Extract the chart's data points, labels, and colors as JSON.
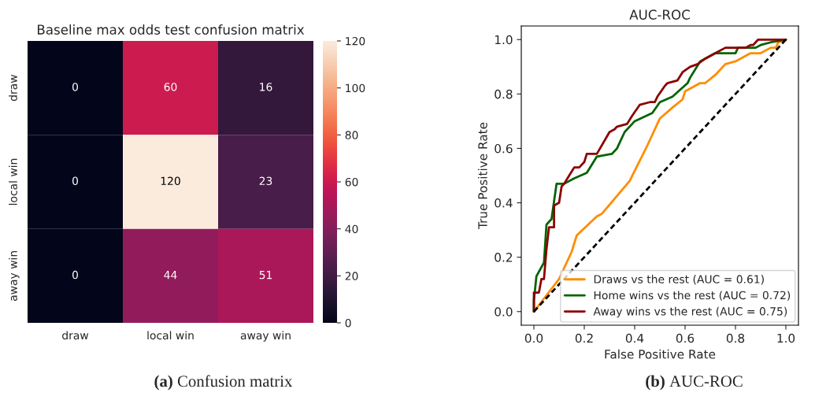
{
  "chart_data": [
    {
      "type": "heatmap",
      "title": "Baseline max odds test confusion matrix",
      "categories": [
        "draw",
        "local win",
        "away win"
      ],
      "y_categories": [
        "draw",
        "local win",
        "away win"
      ],
      "cells": [
        [
          0,
          60,
          16
        ],
        [
          0,
          120,
          23
        ],
        [
          0,
          44,
          51
        ]
      ],
      "data_labels": true,
      "clim": [
        0,
        120
      ],
      "cticks": [
        0,
        20,
        40,
        60,
        80,
        100,
        120
      ],
      "annotations": [
        "(a) Confusion matrix"
      ]
    },
    {
      "type": "line",
      "title": "AUC-ROC",
      "xlabel": "False Positive Rate",
      "ylabel": "True Positive Rate",
      "xlim": [
        -0.05,
        1.05
      ],
      "ylim": [
        -0.05,
        1.05
      ],
      "xticks": [
        {
          "value": 0,
          "label": "0.0"
        },
        {
          "value": 0.2,
          "label": "0.2"
        },
        {
          "value": 0.4,
          "label": "0.4"
        },
        {
          "value": 0.6,
          "label": "0.6"
        },
        {
          "value": 0.8,
          "label": "0.8"
        },
        {
          "value": 1,
          "label": "1.0"
        }
      ],
      "yticks": [
        {
          "value": 0,
          "label": "0.0"
        },
        {
          "value": 0.2,
          "label": "0.2"
        },
        {
          "value": 0.4,
          "label": "0.4"
        },
        {
          "value": 0.6,
          "label": "0.6"
        },
        {
          "value": 0.8,
          "label": "0.8"
        },
        {
          "value": 1,
          "label": "1.0"
        }
      ],
      "grid": false,
      "legend": "bottom right",
      "series": [
        {
          "name": "Draws vs the rest (AUC = 0.61)",
          "color": "#ff8c00",
          "x": [
            0,
            0.1,
            0.15,
            0.17,
            0.25,
            0.27,
            0.38,
            0.45,
            0.5,
            0.55,
            0.59,
            0.6,
            0.66,
            0.68,
            0.72,
            0.76,
            0.8,
            0.86,
            0.9,
            0.94,
            0.96,
            0.97,
            1
          ],
          "values": [
            0,
            0.12,
            0.22,
            0.28,
            0.35,
            0.36,
            0.48,
            0.61,
            0.71,
            0.75,
            0.78,
            0.81,
            0.84,
            0.84,
            0.87,
            0.91,
            0.92,
            0.95,
            0.95,
            0.97,
            0.97,
            0.99,
            1
          ]
        },
        {
          "name": "Home wins vs the rest (AUC = 0.72)",
          "color": "#006400",
          "x": [
            0,
            0,
            0.01,
            0.04,
            0.05,
            0.07,
            0.09,
            0.12,
            0.16,
            0.21,
            0.25,
            0.31,
            0.33,
            0.36,
            0.4,
            0.47,
            0.5,
            0.55,
            0.61,
            0.62,
            0.66,
            0.72,
            0.8,
            0.81,
            0.88,
            0.9,
            0.94,
            1
          ],
          "values": [
            0,
            0.04,
            0.13,
            0.18,
            0.32,
            0.34,
            0.47,
            0.47,
            0.49,
            0.51,
            0.57,
            0.58,
            0.6,
            0.66,
            0.7,
            0.73,
            0.77,
            0.79,
            0.84,
            0.86,
            0.92,
            0.95,
            0.95,
            0.97,
            0.97,
            0.98,
            0.99,
            1
          ]
        },
        {
          "name": "Away wins vs the rest (AUC = 0.75)",
          "color": "#8b0000",
          "x": [
            0,
            0,
            0.02,
            0.03,
            0.04,
            0.05,
            0.06,
            0.08,
            0.08,
            0.1,
            0.11,
            0.12,
            0.14,
            0.16,
            0.18,
            0.2,
            0.21,
            0.25,
            0.3,
            0.32,
            0.33,
            0.37,
            0.39,
            0.42,
            0.46,
            0.48,
            0.49,
            0.52,
            0.53,
            0.57,
            0.59,
            0.62,
            0.65,
            0.68,
            0.72,
            0.76,
            0.84,
            0.86,
            0.87,
            0.89,
            1
          ],
          "values": [
            0,
            0.07,
            0.07,
            0.12,
            0.12,
            0.23,
            0.31,
            0.31,
            0.39,
            0.4,
            0.46,
            0.47,
            0.5,
            0.53,
            0.53,
            0.55,
            0.58,
            0.58,
            0.66,
            0.67,
            0.68,
            0.69,
            0.72,
            0.76,
            0.77,
            0.77,
            0.79,
            0.83,
            0.84,
            0.85,
            0.88,
            0.9,
            0.91,
            0.93,
            0.95,
            0.97,
            0.97,
            0.98,
            0.98,
            1,
            1
          ]
        },
        {
          "color": "#000000",
          "line_style": "dashed",
          "x": [
            0,
            1
          ],
          "values": [
            0,
            1
          ]
        }
      ],
      "annotations": [
        "(b) AUC-ROC"
      ]
    }
  ]
}
